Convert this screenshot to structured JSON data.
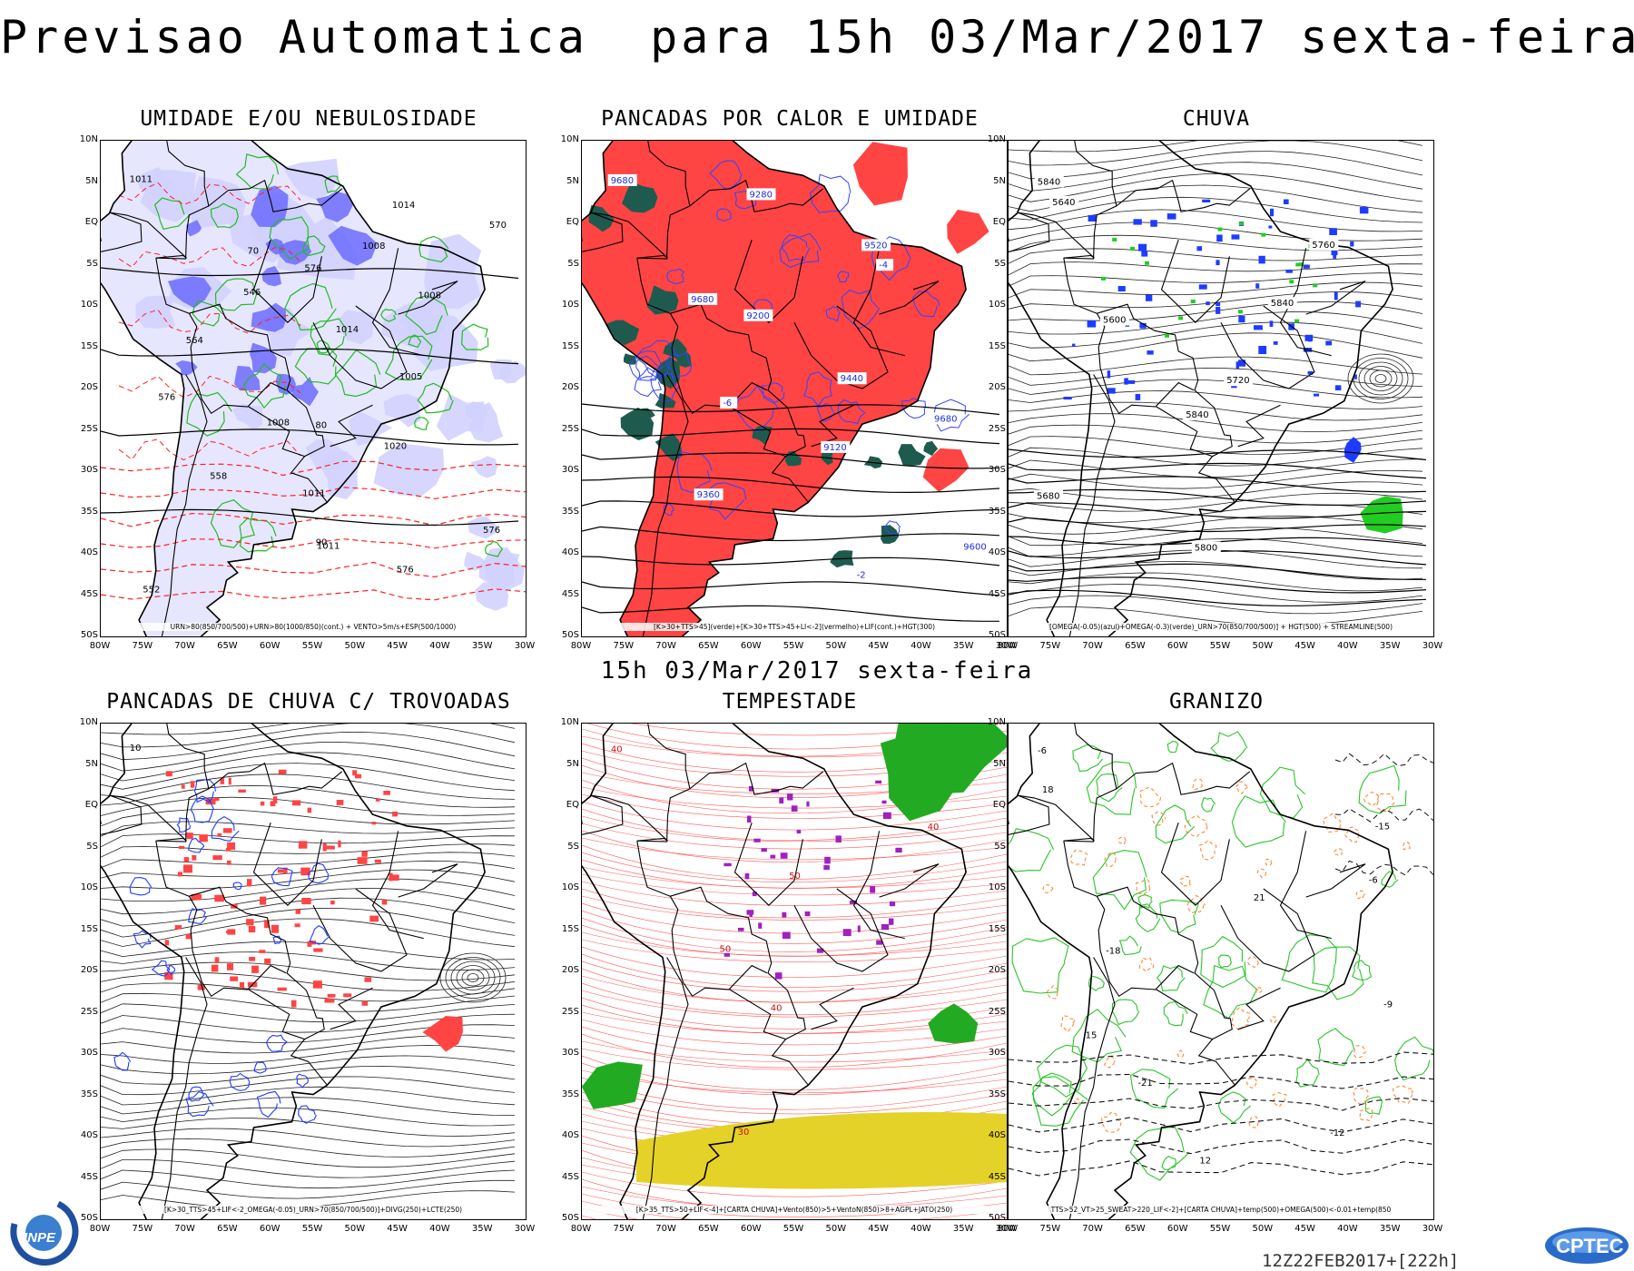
{
  "header": {
    "title": "Previsao Automatica  para 15h 03/Mar/2017 sexta-feira",
    "mid_title": "15h 03/Mar/2017 sexta-feira"
  },
  "axes": {
    "lat_ticks": [
      "10N",
      "5N",
      "EQ",
      "5S",
      "10S",
      "15S",
      "20S",
      "25S",
      "30S",
      "35S",
      "40S",
      "45S",
      "50S"
    ],
    "lon_ticks": [
      "80W",
      "75W",
      "70W",
      "65W",
      "60W",
      "55W",
      "50W",
      "45W",
      "40W",
      "35W",
      "30W"
    ]
  },
  "panels": [
    {
      "title": "UMIDADE E/OU NEBULOSIDADE",
      "caption": "URN>80(850/700/500)+URN>80(1000/850)(cont.) + VENTO>5m/s+ESP(500/1000)",
      "contour_labels": [
        "1011",
        "1008",
        "1008",
        "1011",
        "1008",
        "1005",
        "1011",
        "1014",
        "1014",
        "1020",
        "576",
        "576",
        "576",
        "576",
        "570",
        "564",
        "558",
        "552",
        "546",
        "80",
        "90",
        "70"
      ]
    },
    {
      "title": "PANCADAS POR CALOR E UMIDADE",
      "caption": "[K>30+TTS>45](verde)+[K>30+TTS>45+LI<-2](vermelho)+LIF(cont.)+HGT(300)",
      "contour_labels": [
        "9680",
        "9680",
        "9680",
        "9600",
        "9520",
        "9440",
        "9360",
        "9280",
        "9200",
        "9120",
        "-2",
        "-4",
        "-6"
      ]
    },
    {
      "title": "CHUVA",
      "caption": "[OMEGA(-0.05)(azul)+OMEGA(-0.3)(verde)_URN>70(850/700/500)] + HGT(500) + STREAMLINE(500)",
      "contour_labels": [
        "5840",
        "5840",
        "5840",
        "5800",
        "5760",
        "5720",
        "5680",
        "5640",
        "5600"
      ]
    },
    {
      "title": "PANCADAS DE CHUVA C/ TROVOADAS",
      "caption": "[K>30_TTS>45+LIF<-2_OMEGA(-0.05)_URN>70(850/700/500)]+DIVG(250)+LCTE(250)",
      "contour_labels": [
        "10"
      ]
    },
    {
      "title": "TEMPESTADE",
      "caption": "[K>35_TTS>50+LIF<-4]+[CARTA CHUVA]+Vento(850)>5+VentoN(850)>8+AGPL+JATO(250)",
      "contour_labels": [
        "40",
        "50",
        "40",
        "30",
        "40",
        "50"
      ]
    },
    {
      "title": "GRANIZO",
      "caption": "TTS>52_VT>25_SWEAT>220_LIF<-2]+[CARTA CHUVA]+temp(500)+OMEGA(500)<-0.01+temp(850",
      "contour_labels": [
        "-6",
        "-6",
        "-9",
        "-12",
        "-15",
        "-18",
        "-21",
        "18",
        "21",
        "15",
        "12"
      ]
    }
  ],
  "footer": {
    "run": "12Z22FEB2017+[222h]",
    "logo_left": "INPE",
    "logo_right": "CPTEC"
  },
  "colors": {
    "humidity_blue": "#6b6bff",
    "humidity_light": "#d2d2ff",
    "contour_green": "#22bb22",
    "contour_red": "#ff2020",
    "fill_red": "#ff4444",
    "fill_teal": "#1f5a4e",
    "rain_blue": "#1e3cff",
    "rain_green": "#22cc22",
    "storm_purple": "#a020c0",
    "storm_yellow": "#e4d228",
    "hail_orange": "#ff7f27"
  }
}
